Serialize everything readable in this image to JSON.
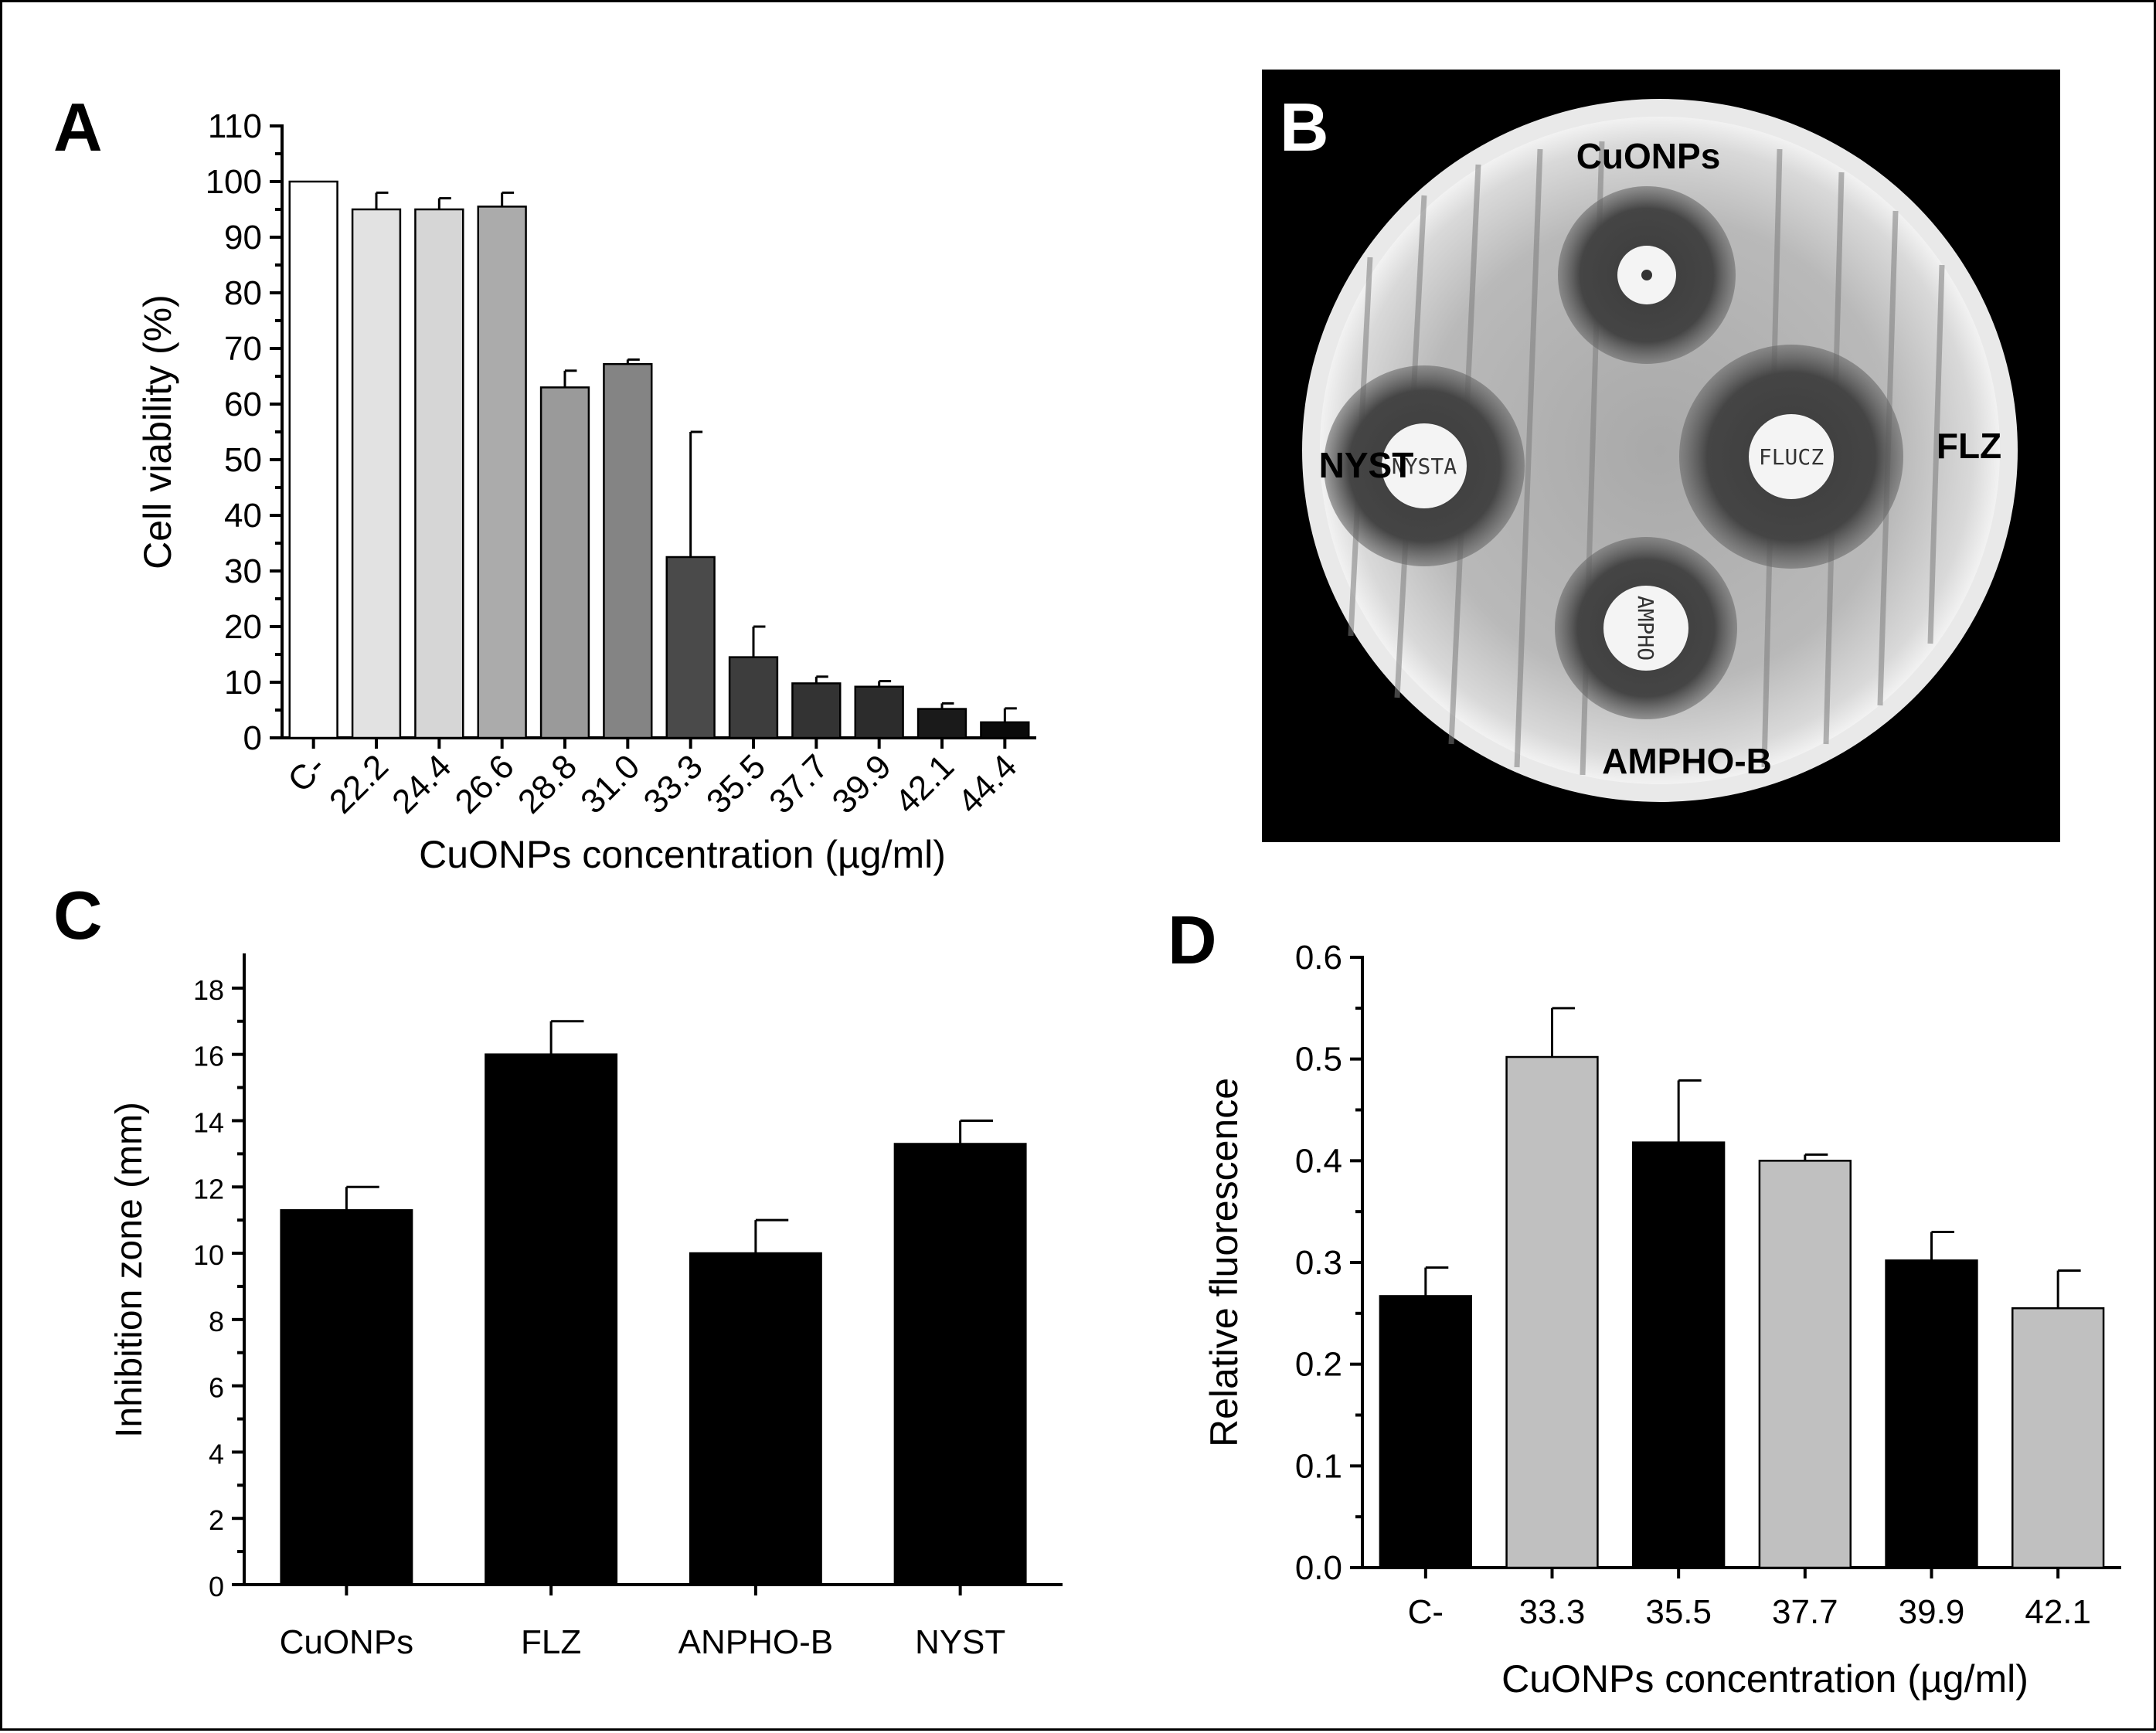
{
  "panels": {
    "a": "A",
    "b": "B",
    "c": "C",
    "d": "D"
  },
  "photo": {
    "labels": {
      "top": "CuONPs",
      "left": "NYST",
      "right": "FLZ",
      "bottom": "AMPHO-B"
    },
    "disk_text": {
      "top": "",
      "left": "NYSTA",
      "right": "FLUCZ",
      "bottom": "AMPHO"
    }
  },
  "chart_data": [
    {
      "id": "A",
      "type": "bar",
      "title": "",
      "xlabel": "CuONPs concentration (µg/ml)",
      "ylabel": "Cell viability (%)",
      "ylim": [
        0,
        110
      ],
      "yticks": [
        0,
        10,
        20,
        30,
        40,
        50,
        60,
        70,
        80,
        90,
        100,
        110
      ],
      "categories": [
        "C-",
        "22.2",
        "24.4",
        "26.6",
        "28.8",
        "31.0",
        "33.3",
        "35.5",
        "37.7",
        "39.9",
        "42.1",
        "44.4"
      ],
      "values": [
        100,
        95,
        95,
        95.5,
        63,
        67.2,
        32.5,
        14.5,
        9.8,
        9.2,
        5.2,
        2.8
      ],
      "errors": [
        0,
        3,
        2,
        2.5,
        3,
        0.8,
        22.5,
        5.5,
        1.2,
        1,
        1,
        2.5
      ],
      "colors": [
        "#ffffff",
        "#e2e2e2",
        "#d6d6d6",
        "#ababab",
        "#9a9a9a",
        "#848484",
        "#4a4a4a",
        "#3d3d3d",
        "#333333",
        "#2c2c2c",
        "#1a1a1a",
        "#0a0a0a"
      ]
    },
    {
      "id": "C",
      "type": "bar",
      "title": "",
      "xlabel": "",
      "ylabel": "Inhibition zone (mm)",
      "ylim": [
        0,
        19
      ],
      "yticks": [
        0,
        2,
        4,
        6,
        8,
        10,
        12,
        14,
        16,
        18
      ],
      "categories": [
        "CuONPs",
        "FLZ",
        "ANPHO-B",
        "NYST"
      ],
      "values": [
        11.3,
        16,
        10,
        13.3
      ],
      "errors": [
        0.7,
        1,
        1,
        0.7
      ],
      "colors": [
        "#000000",
        "#000000",
        "#000000",
        "#000000"
      ]
    },
    {
      "id": "D",
      "type": "bar",
      "title": "",
      "xlabel": "CuONPs concentration (µg/ml)",
      "ylabel": "Relative fluorescence",
      "ylim": [
        0,
        0.6
      ],
      "yticks": [
        "0.0",
        "0.1",
        "0.2",
        "0.3",
        "0.4",
        "0.5",
        "0.6"
      ],
      "categories": [
        "C-",
        "33.3",
        "35.5",
        "37.7",
        "39.9",
        "42.1"
      ],
      "values": [
        0.267,
        0.502,
        0.418,
        0.4,
        0.302,
        0.255
      ],
      "errors": [
        0.028,
        0.048,
        0.061,
        0.006,
        0.028,
        0.037
      ],
      "colors": [
        "#000000",
        "#c0c0c0",
        "#000000",
        "#c0c0c0",
        "#000000",
        "#c0c0c0"
      ]
    }
  ]
}
